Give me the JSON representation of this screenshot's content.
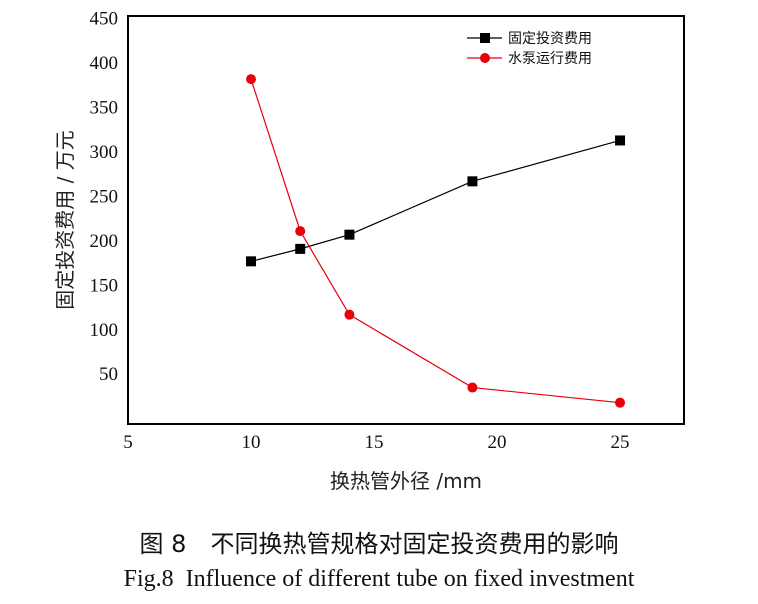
{
  "chart_data": {
    "type": "line",
    "xlabel": "换热管外径 /mm",
    "ylabel": "固定投资费用 / 万元",
    "xlim": [
      5,
      27.6
    ],
    "ylim": [
      -6,
      453
    ],
    "xticks": [
      5,
      10,
      15,
      20,
      25
    ],
    "yticks": [
      50,
      100,
      150,
      200,
      250,
      300,
      350,
      400,
      450
    ],
    "grid": false,
    "legend_position": "top-right",
    "x": [
      10,
      12,
      14,
      19,
      25
    ],
    "series": [
      {
        "name": "固定投资费用",
        "values": [
          177,
          191,
          207,
          267,
          313
        ],
        "color": "#000000",
        "marker": "square"
      },
      {
        "name": "水泵运行费用",
        "values": [
          382,
          211,
          117,
          35,
          18
        ],
        "color": "#e8000b",
        "marker": "circle"
      }
    ]
  },
  "caption": {
    "zh": "图 8　不同换热管规格对固定投资费用的影响",
    "en": "Fig.8  Influence of different tube on fixed investment"
  }
}
